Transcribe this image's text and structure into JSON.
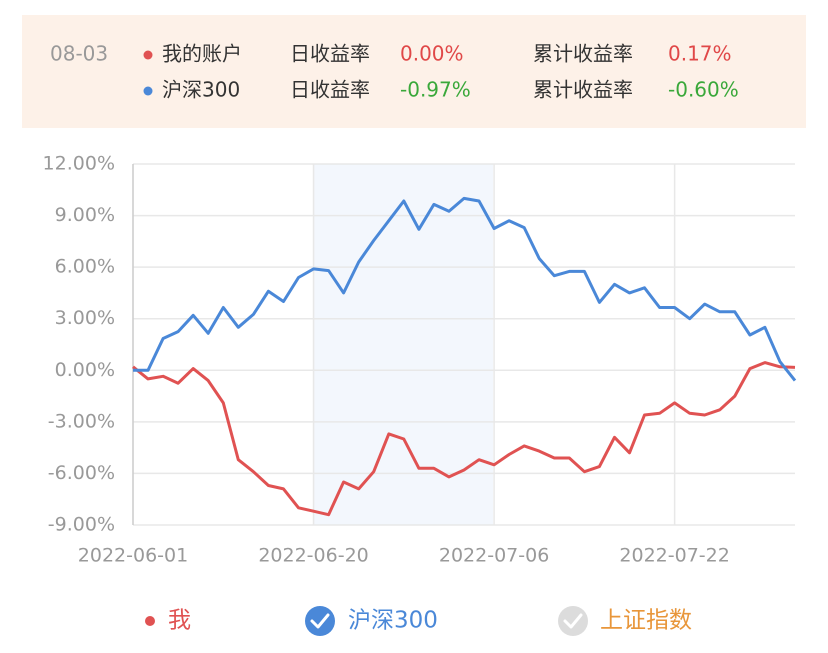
{
  "tooltip": {
    "date": "08-03",
    "rows": [
      {
        "name": "我的账户",
        "color": "#e05252",
        "daily_label": "日收益率",
        "daily": "0.00%",
        "daily_color": "#e04848",
        "total_label": "累计收益率",
        "total": "0.17%",
        "total_color": "#e04848"
      },
      {
        "name": "沪深300",
        "color": "#4a88d8",
        "daily_label": "日收益率",
        "daily": "-0.97%",
        "daily_color": "#3aa83a",
        "total_label": "累计收益率",
        "total": "-0.60%",
        "total_color": "#3aa83a"
      }
    ]
  },
  "chart_data": {
    "type": "line",
    "categories": [
      "2022-06-01",
      null,
      null,
      null,
      null,
      null,
      null,
      null,
      null,
      null,
      null,
      null,
      "2022-06-20",
      null,
      null,
      null,
      null,
      null,
      null,
      null,
      null,
      null,
      null,
      null,
      "2022-07-06",
      null,
      null,
      null,
      null,
      null,
      null,
      null,
      null,
      null,
      null,
      null,
      "2022-07-22",
      null,
      null,
      null,
      null,
      null,
      null,
      null,
      null
    ],
    "series": [
      {
        "name": "我",
        "color": "#e05252",
        "values": [
          0.2,
          -0.5,
          -0.35,
          -0.75,
          0.1,
          -0.6,
          -1.9,
          -5.2,
          -5.9,
          -6.7,
          -6.9,
          -8.0,
          -8.2,
          -8.4,
          -6.5,
          -6.9,
          -5.9,
          -3.7,
          -4.0,
          -5.7,
          -5.7,
          -6.2,
          -5.8,
          -5.2,
          -5.5,
          -4.9,
          -4.4,
          -4.7,
          -5.1,
          -5.1,
          -5.9,
          -5.6,
          -3.9,
          -4.8,
          -2.6,
          -2.5,
          -1.9,
          -2.5,
          -2.6,
          -2.3,
          -1.5,
          0.1,
          0.45,
          0.2,
          0.17
        ]
      },
      {
        "name": "沪深300",
        "color": "#4a88d8",
        "values": [
          0,
          0,
          1.85,
          2.25,
          3.2,
          2.15,
          3.65,
          2.5,
          3.25,
          4.6,
          4.0,
          5.4,
          5.9,
          5.8,
          4.5,
          6.3,
          7.55,
          8.7,
          9.85,
          8.2,
          9.65,
          9.25,
          10.0,
          9.85,
          8.25,
          8.7,
          8.3,
          6.5,
          5.5,
          5.75,
          5.75,
          3.95,
          5.0,
          4.5,
          4.8,
          3.65,
          3.65,
          3.0,
          3.85,
          3.4,
          3.4,
          2.05,
          2.5,
          0.5,
          -0.6
        ]
      }
    ],
    "inactive_legend": [
      {
        "name": "上证指数",
        "color": "#e8963a"
      }
    ],
    "ylim": [
      -9,
      12
    ],
    "yticks": [
      {
        "value": -9,
        "label": "-9.00%"
      },
      {
        "value": -6,
        "label": "-6.00%"
      },
      {
        "value": -3,
        "label": "-3.00%"
      },
      {
        "value": 0,
        "label": "0.00%"
      },
      {
        "value": 3,
        "label": "3.00%"
      },
      {
        "value": 6,
        "label": "6.00%"
      },
      {
        "value": 9,
        "label": "9.00%"
      },
      {
        "value": 12,
        "label": "12.00%"
      }
    ],
    "grid": true
  }
}
